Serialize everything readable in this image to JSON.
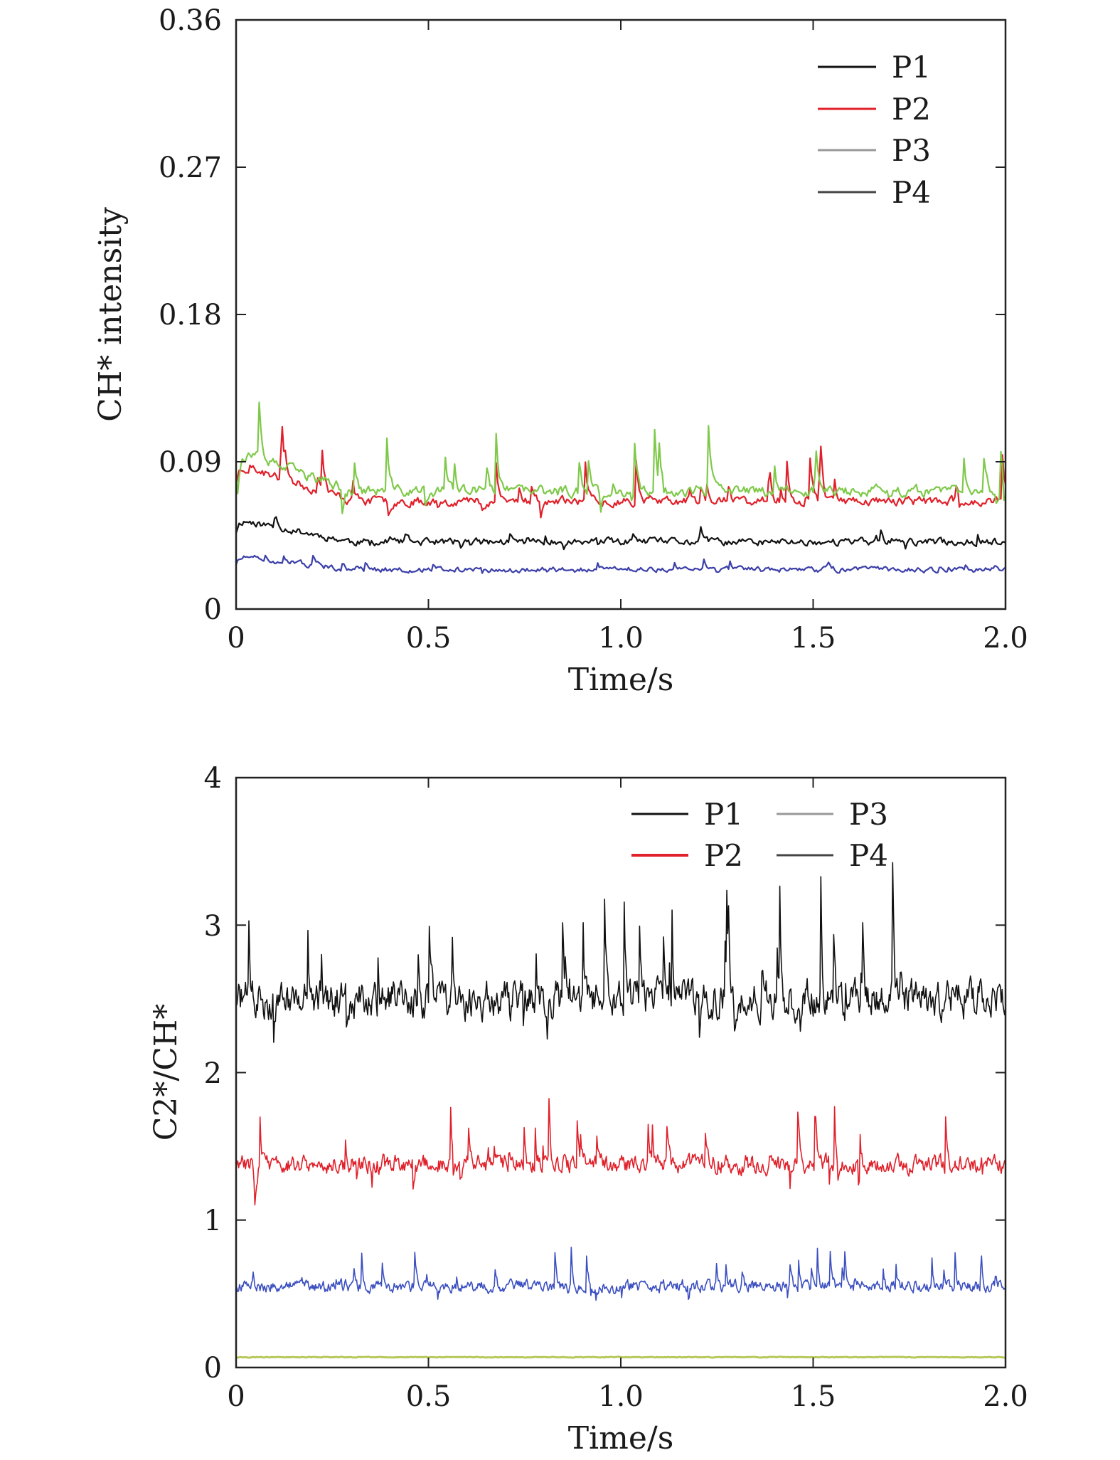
{
  "chart_data": [
    {
      "type": "line",
      "title": "",
      "xlabel": "Time/s",
      "ylabel": "CH* intensity",
      "xlim": [
        0,
        2.0
      ],
      "ylim": [
        0,
        0.36
      ],
      "xticks": [
        "0",
        "0.5",
        "1.0",
        "1.5",
        "2.0"
      ],
      "xtick_values": [
        0,
        0.5,
        1.0,
        1.5,
        2.0
      ],
      "yticks": [
        "0",
        "0.09",
        "0.18",
        "0.27",
        "0.36"
      ],
      "ytick_values": [
        0,
        0.09,
        0.18,
        0.27,
        0.36
      ],
      "legend_position": "top-right",
      "series": [
        {
          "name": "P1",
          "color": "#111111",
          "mean": 0.041,
          "noise": 0.004,
          "spike": 0.006,
          "seed": 11
        },
        {
          "name": "P2",
          "color": "#e0202a",
          "mean": 0.066,
          "noise": 0.005,
          "spike": 0.02,
          "seed": 23
        },
        {
          "name": "P3",
          "color": "#7fc94a",
          "mean": 0.072,
          "noise": 0.006,
          "spike": 0.03,
          "seed": 37
        },
        {
          "name": "P4",
          "color": "#3b3fa8",
          "mean": 0.024,
          "noise": 0.003,
          "spike": 0.004,
          "seed": 51
        }
      ]
    },
    {
      "type": "line",
      "title": "",
      "xlabel": "Time/s",
      "ylabel": "C2*/CH*",
      "xlim": [
        0,
        2.0
      ],
      "ylim": [
        0,
        4
      ],
      "xticks": [
        "0",
        "0.5",
        "1.0",
        "1.5",
        "2.0"
      ],
      "xtick_values": [
        0,
        0.5,
        1.0,
        1.5,
        2.0
      ],
      "yticks": [
        "0",
        "1",
        "2",
        "3",
        "4"
      ],
      "ytick_values": [
        0,
        1,
        2,
        3,
        4
      ],
      "legend_position": "top-right",
      "legend_columns": 2,
      "series": [
        {
          "name": "P1",
          "color": "#111111",
          "mean": 2.5,
          "noise": 0.22,
          "spike": 0.6,
          "seed": 71
        },
        {
          "name": "P2",
          "color": "#e0202a",
          "mean": 1.38,
          "noise": 0.11,
          "spike": 0.3,
          "seed": 83
        },
        {
          "name": "P3",
          "color": "#b8c85a",
          "mean": 0.07,
          "noise": 0.004,
          "spike": 0.0,
          "seed": 97
        },
        {
          "name": "P4",
          "color": "#3b4fc0",
          "mean": 0.55,
          "noise": 0.07,
          "spike": 0.18,
          "seed": 109
        }
      ]
    }
  ]
}
